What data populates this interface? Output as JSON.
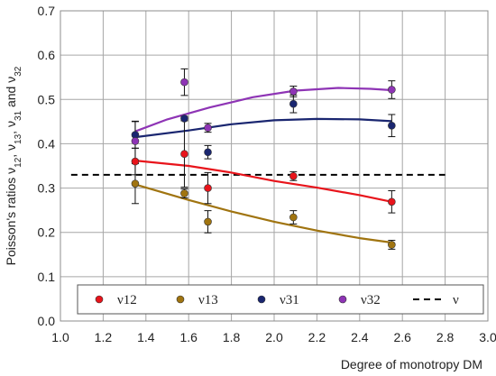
{
  "chart_data": {
    "type": "scatter",
    "xlabel": "Degree of monotropy DM",
    "ylabel": {
      "prefix": "Poisson's ratios ν",
      "parts": [
        {
          "sub": "12",
          "after": ", ν"
        },
        {
          "sub": "13",
          "after": ", ν"
        },
        {
          "sub": "31",
          "after": " and ν"
        },
        {
          "sub": "32",
          "after": ""
        }
      ]
    },
    "xlim": [
      1.0,
      3.0
    ],
    "ylim": [
      0.0,
      0.7
    ],
    "xticks": [
      "1.0",
      "1.2",
      "1.4",
      "1.6",
      "1.8",
      "2.0",
      "2.2",
      "2.4",
      "2.6",
      "2.8",
      "3.0"
    ],
    "yticks": [
      "0.0",
      "0.1",
      "0.2",
      "0.3",
      "0.4",
      "0.5",
      "0.6",
      "0.7"
    ],
    "grid": true,
    "legend_position": "bottom",
    "series": [
      {
        "name": "ν12",
        "color": "#e8141b",
        "points": [
          {
            "x": 1.35,
            "y": 0.36,
            "err": 0.03
          },
          {
            "x": 1.58,
            "y": 0.377,
            "err": 0.075
          },
          {
            "x": 1.69,
            "y": 0.3,
            "err": 0.035
          },
          {
            "x": 2.09,
            "y": 0.327,
            "err": 0.01
          },
          {
            "x": 2.55,
            "y": 0.269,
            "err": 0.025
          }
        ],
        "trend": [
          [
            1.35,
            0.362
          ],
          [
            1.6,
            0.35
          ],
          [
            1.8,
            0.335
          ],
          [
            2.0,
            0.316
          ],
          [
            2.2,
            0.301
          ],
          [
            2.4,
            0.284
          ],
          [
            2.55,
            0.269
          ]
        ]
      },
      {
        "name": "ν13",
        "color": "#a07410",
        "points": [
          {
            "x": 1.35,
            "y": 0.31,
            "err": 0.045
          },
          {
            "x": 1.58,
            "y": 0.288,
            "err": 0.01
          },
          {
            "x": 1.69,
            "y": 0.224,
            "err": 0.025
          },
          {
            "x": 2.09,
            "y": 0.234,
            "err": 0.015
          },
          {
            "x": 2.55,
            "y": 0.172,
            "err": 0.01
          }
        ],
        "trend": [
          [
            1.35,
            0.308
          ],
          [
            1.6,
            0.273
          ],
          [
            1.8,
            0.247
          ],
          [
            2.0,
            0.224
          ],
          [
            2.2,
            0.204
          ],
          [
            2.4,
            0.187
          ],
          [
            2.55,
            0.177
          ]
        ]
      },
      {
        "name": "ν31",
        "color": "#1a2670",
        "points": [
          {
            "x": 1.35,
            "y": 0.42,
            "err": 0.03
          },
          {
            "x": 1.58,
            "y": 0.457,
            "err": 0.005
          },
          {
            "x": 1.69,
            "y": 0.381,
            "err": 0.015
          },
          {
            "x": 2.09,
            "y": 0.49,
            "err": 0.02
          },
          {
            "x": 2.55,
            "y": 0.441,
            "err": 0.025
          }
        ],
        "trend": [
          [
            1.35,
            0.415
          ],
          [
            1.6,
            0.43
          ],
          [
            1.8,
            0.444
          ],
          [
            2.0,
            0.453
          ],
          [
            2.2,
            0.456
          ],
          [
            2.4,
            0.455
          ],
          [
            2.55,
            0.451
          ]
        ]
      },
      {
        "name": "ν32",
        "color": "#8e34b5",
        "points": [
          {
            "x": 1.35,
            "y": 0.406,
            "err": 0.045
          },
          {
            "x": 1.58,
            "y": 0.539,
            "err": 0.03
          },
          {
            "x": 1.69,
            "y": 0.436,
            "err": 0.01
          },
          {
            "x": 2.09,
            "y": 0.518,
            "err": 0.012
          },
          {
            "x": 2.55,
            "y": 0.522,
            "err": 0.02
          }
        ],
        "trend": [
          [
            1.35,
            0.428
          ],
          [
            1.5,
            0.455
          ],
          [
            1.7,
            0.482
          ],
          [
            1.9,
            0.505
          ],
          [
            2.1,
            0.52
          ],
          [
            2.3,
            0.526
          ],
          [
            2.45,
            0.524
          ],
          [
            2.55,
            0.521
          ]
        ]
      }
    ],
    "reference_line": {
      "name": "ν",
      "y": 0.33,
      "x_range": [
        1.05,
        2.8
      ],
      "style": "dashed",
      "color": "#000000"
    }
  }
}
